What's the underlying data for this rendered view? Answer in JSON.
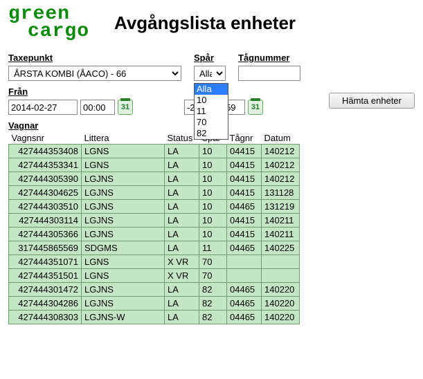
{
  "header": {
    "logo_line1": "green",
    "logo_line2": "cargo",
    "title": "Avgångslista enheter"
  },
  "filters": {
    "taxepunkt": {
      "label": "Taxepunkt",
      "value": "ÅRSTA KOMBI (ÅACO) - 66"
    },
    "spar": {
      "label": "Spår",
      "value": "Alla",
      "options": [
        "Alla",
        "10",
        "11",
        "70",
        "82"
      ],
      "selected_index": 0
    },
    "tagnummer": {
      "label": "Tågnummer",
      "value": ""
    },
    "fran": {
      "label": "Från",
      "date": "2014-02-27",
      "time": "00:00"
    },
    "till_visible": {
      "date_suffix": "-27",
      "time": "23:59"
    },
    "button": "Hämta enheter",
    "calendar_glyph": "31"
  },
  "table": {
    "heading": "Vagnar",
    "columns": [
      "Vagnsnr",
      "Littera",
      "Status",
      "Spår",
      "Tågnr",
      "Datum"
    ],
    "rows": [
      [
        "427444353408",
        "LGNS",
        "LA",
        "10",
        "04415",
        "140212"
      ],
      [
        "427444353341",
        "LGNS",
        "LA",
        "10",
        "04415",
        "140212"
      ],
      [
        "427444305390",
        "LGJNS",
        "LA",
        "10",
        "04415",
        "140212"
      ],
      [
        "427444304625",
        "LGJNS",
        "LA",
        "10",
        "04415",
        "131128"
      ],
      [
        "427444303510",
        "LGJNS",
        "LA",
        "10",
        "04465",
        "131219"
      ],
      [
        "427444303114",
        "LGJNS",
        "LA",
        "10",
        "04415",
        "140211"
      ],
      [
        "427444305366",
        "LGJNS",
        "LA",
        "10",
        "04415",
        "140211"
      ],
      [
        "317445865569",
        "SDGMS",
        "LA",
        "11",
        "04465",
        "140225"
      ],
      [
        "427444351071",
        "LGNS",
        "X VR",
        "70",
        "",
        ""
      ],
      [
        "427444351501",
        "LGNS",
        "X VR",
        "70",
        "",
        ""
      ],
      [
        "427444301472",
        "LGJNS",
        "LA",
        "82",
        "04465",
        "140220"
      ],
      [
        "427444304286",
        "LGJNS",
        "LA",
        "82",
        "04465",
        "140220"
      ],
      [
        "427444308303",
        "LGJNS-W",
        "LA",
        "82",
        "04465",
        "140220"
      ]
    ]
  },
  "styling": {
    "row_bg": "#c3e6c3",
    "row_border": "#6b9a6b",
    "logo_color": "#0a8a0a",
    "dropdown_highlight": "#2d7dff"
  }
}
